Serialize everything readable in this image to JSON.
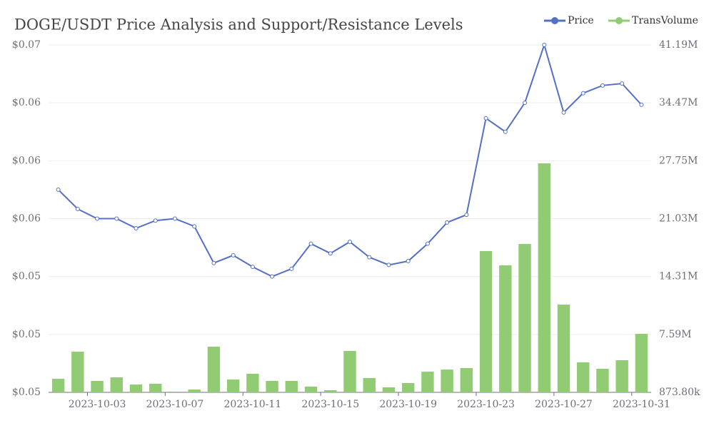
{
  "chart_data": {
    "type": "bar_line",
    "title": "DOGE/USDT Price Analysis and Support/Resistance Levels",
    "categories": [
      null,
      null,
      "2023-10-03",
      null,
      null,
      null,
      "2023-10-07",
      null,
      null,
      null,
      "2023-10-11",
      null,
      null,
      null,
      "2023-10-15",
      null,
      null,
      null,
      "2023-10-19",
      null,
      null,
      null,
      "2023-10-23",
      null,
      null,
      null,
      "2023-10-27",
      null,
      null,
      null,
      "2023-10-31"
    ],
    "series": [
      {
        "name": "Price",
        "type": "line",
        "color": "#5470c6",
        "axis": "y",
        "values": [
          0.0585,
          0.0575,
          0.057,
          0.057,
          0.0565,
          0.0569,
          0.057,
          0.0566,
          0.0547,
          0.0551,
          0.0545,
          0.054,
          0.0544,
          0.0557,
          0.0552,
          0.0558,
          0.055,
          0.0546,
          0.0548,
          0.0557,
          0.0568,
          0.0572,
          0.0622,
          0.0615,
          0.063,
          0.066,
          0.0625,
          0.0635,
          0.0639,
          0.064,
          0.0629
        ]
      },
      {
        "name": "TransVolume",
        "type": "bar",
        "color": "#91cc75",
        "axis": "y2",
        "values": [
          2450000,
          5590000,
          2200000,
          2610000,
          1780000,
          1870000,
          960000,
          1200000,
          6170000,
          2360000,
          3030000,
          2200000,
          2200000,
          1540000,
          1120000,
          5680000,
          2530000,
          1450000,
          1950000,
          3270000,
          3520000,
          3690000,
          17270000,
          15610000,
          18090000,
          27450000,
          11060000,
          4350000,
          3610000,
          4600000,
          7660000
        ]
      }
    ],
    "ylim": [
      0.048,
      0.066
    ],
    "yticks": [
      {
        "value": 0.048,
        "label": "$0.05"
      },
      {
        "value": 0.051,
        "label": "$0.05"
      },
      {
        "value": 0.054,
        "label": "$0.05"
      },
      {
        "value": 0.057,
        "label": "$0.06"
      },
      {
        "value": 0.06,
        "label": "$0.06"
      },
      {
        "value": 0.063,
        "label": "$0.06"
      },
      {
        "value": 0.066,
        "label": "$0.07"
      }
    ],
    "y2lim": [
      873800,
      41190000
    ],
    "y2ticks": [
      {
        "value": 873800,
        "label": "873.80k"
      },
      {
        "value": 7593167,
        "label": "7.59M"
      },
      {
        "value": 14312533,
        "label": "14.31M"
      },
      {
        "value": 21031900,
        "label": "21.03M"
      },
      {
        "value": 27751267,
        "label": "27.75M"
      },
      {
        "value": 34470633,
        "label": "34.47M"
      },
      {
        "value": 41190000,
        "label": "41.19M"
      }
    ],
    "grid": true,
    "legend": "top-right"
  }
}
